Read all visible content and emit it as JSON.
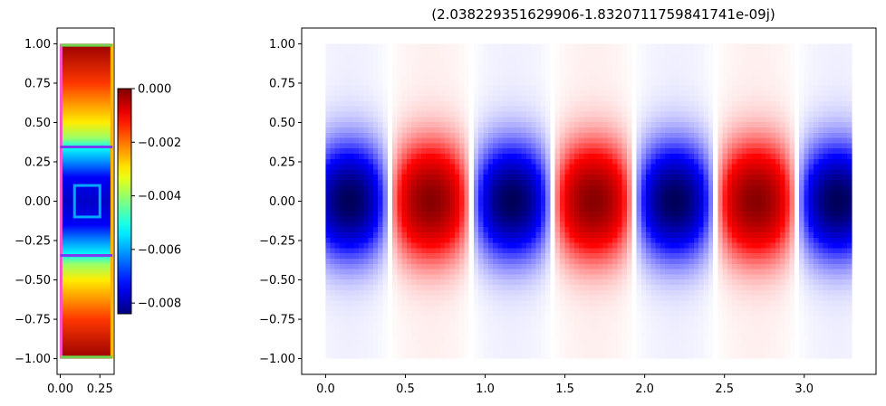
{
  "chart_data": [
    {
      "type": "heatmap",
      "panel": "geometry",
      "title": "",
      "xlabel": "",
      "ylabel": "",
      "xlim": [
        -0.02,
        0.34
      ],
      "ylim": [
        -1.1,
        1.1
      ],
      "xticks": [
        0.0,
        0.25
      ],
      "xtick_labels": [
        "0.00",
        "0.25"
      ],
      "yticks": [
        1.0,
        0.75,
        0.5,
        0.25,
        0.0,
        -0.25,
        -0.5,
        -0.75,
        -1.0
      ],
      "ytick_labels": [
        "1.00",
        "0.75",
        "0.50",
        "0.25",
        "0.00",
        "−0.25",
        "−0.50",
        "−0.75",
        "−1.00"
      ],
      "field_extent": {
        "x": [
          0.0,
          0.33
        ],
        "y": [
          -1.0,
          1.0
        ]
      },
      "field_profile": {
        "y": [
          1.0,
          0.75,
          0.5,
          0.4,
          0.34,
          0.25,
          0.15,
          0.0,
          -0.15,
          -0.25,
          -0.34,
          -0.4,
          -0.5,
          -0.75,
          -1.0
        ],
        "value": [
          -0.0002,
          -0.0015,
          -0.003,
          -0.004,
          -0.0052,
          -0.0062,
          -0.0074,
          -0.0078,
          -0.0074,
          -0.0062,
          -0.0052,
          -0.004,
          -0.003,
          -0.0015,
          -0.0002
        ]
      },
      "overlay_lines": [
        {
          "y": 0.345,
          "x": [
            0.0,
            0.33
          ],
          "color": "#7a3cf0"
        },
        {
          "y": -0.345,
          "x": [
            0.0,
            0.33
          ],
          "color": "#7a3cf0"
        },
        {
          "y": 0.99,
          "x": [
            0.0,
            0.33
          ],
          "color": "#6fd44b"
        },
        {
          "y": -0.99,
          "x": [
            0.0,
            0.33
          ],
          "color": "#6fd44b"
        }
      ],
      "overlay_edges": [
        {
          "x": 0.005,
          "y": [
            -1.0,
            1.0
          ],
          "color": "#ff4fd2"
        },
        {
          "x": 0.325,
          "y": [
            -1.0,
            1.0
          ],
          "color": "#ffb000"
        }
      ],
      "overlay_rect": {
        "x": [
          0.09,
          0.25
        ],
        "y": [
          -0.1,
          0.1
        ],
        "color": "#00a8ff"
      },
      "colorbar": {
        "colormap": "jet",
        "range": [
          -0.0084,
          0.0
        ],
        "ticks": [
          0.0,
          -0.002,
          -0.004,
          -0.006,
          -0.008
        ],
        "tick_labels": [
          "0.000",
          "−0.002",
          "−0.004",
          "−0.006",
          "−0.008"
        ]
      }
    },
    {
      "type": "heatmap",
      "panel": "mode",
      "title": "(2.038229351629906-1.8320711759841741e-09j)",
      "xlabel": "",
      "ylabel": "",
      "xlim": [
        -0.15,
        3.45
      ],
      "ylim": [
        -1.1,
        1.1
      ],
      "xticks": [
        0.0,
        0.5,
        1.0,
        1.5,
        2.0,
        2.5,
        3.0
      ],
      "xtick_labels": [
        "0.0",
        "0.5",
        "1.0",
        "1.5",
        "2.0",
        "2.5",
        "3.0"
      ],
      "yticks": [
        1.0,
        0.75,
        0.5,
        0.25,
        0.0,
        -0.25,
        -0.5,
        -0.75,
        -1.0
      ],
      "ytick_labels": [
        "1.00",
        "0.75",
        "0.50",
        "0.25",
        "0.00",
        "−0.25",
        "−0.50",
        "−0.75",
        "−1.00"
      ],
      "field_extent": {
        "x": [
          0.0,
          3.3
        ],
        "y": [
          -1.0,
          1.0
        ]
      },
      "colormap": "seismic",
      "field_model": {
        "x_period": 1.02,
        "first_peak_x": 0.15,
        "first_peak_sign": -1,
        "y_envelope": "gaussian",
        "y_width": 0.34
      }
    }
  ]
}
